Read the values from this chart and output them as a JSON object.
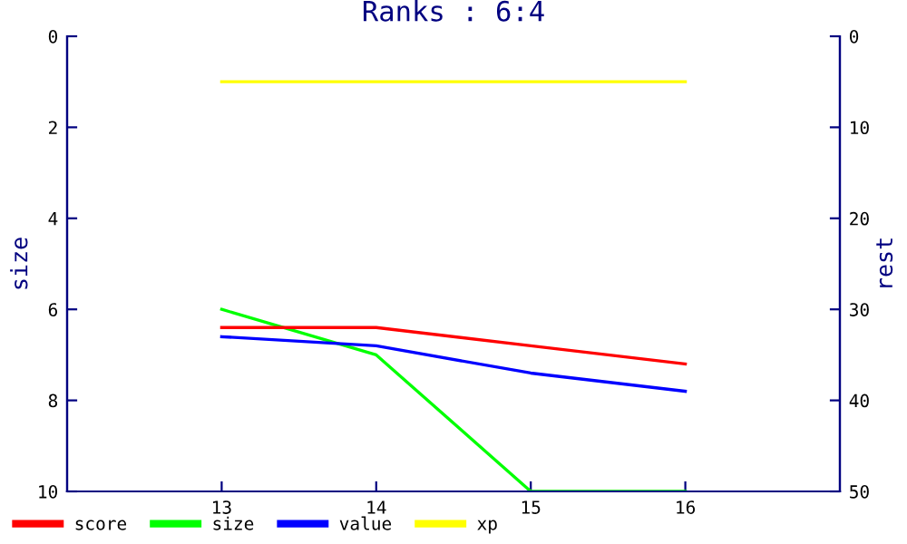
{
  "chart_data": {
    "type": "line",
    "title": "Ranks : 6:4",
    "ylabel": "size",
    "y2label": "rest",
    "x": [
      13,
      14,
      15,
      16
    ],
    "xlim": [
      12,
      17
    ],
    "xticks": [
      13,
      14,
      15,
      16
    ],
    "ylim": [
      10,
      0
    ],
    "yticks": [
      0,
      2,
      4,
      6,
      8,
      10
    ],
    "y2lim": [
      50,
      0
    ],
    "y2ticks": [
      0,
      10,
      20,
      30,
      40,
      50
    ],
    "series": [
      {
        "name": "score",
        "color": "#ff0000",
        "axis": "y2",
        "values": [
          32,
          32,
          34,
          36
        ]
      },
      {
        "name": "size",
        "color": "#00ff00",
        "values": [
          6,
          7,
          10,
          10
        ]
      },
      {
        "name": "value",
        "color": "#0000ff",
        "axis": "y2",
        "values": [
          33,
          34,
          37,
          39
        ]
      },
      {
        "name": "xp",
        "color": "#ffff00",
        "axis": "y2",
        "values": [
          5,
          5,
          5,
          5
        ]
      }
    ],
    "grid": false,
    "legend": "bottom",
    "marker": "none",
    "line_style": "solid"
  }
}
